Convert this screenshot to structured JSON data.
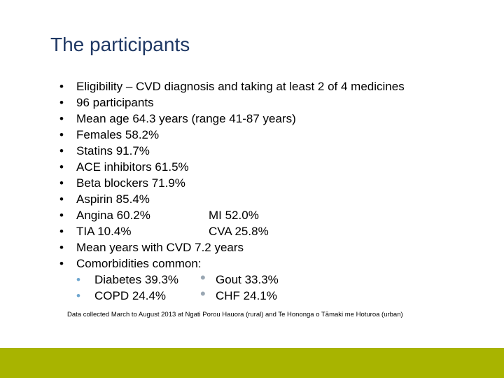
{
  "slide": {
    "title": "The participants",
    "bullet_glyph": "•",
    "items": [
      {
        "text": "Eligibility – CVD diagnosis and taking at least 2 of 4 medicines"
      },
      {
        "text": "96 participants"
      },
      {
        "text": "Mean age 64.3 years (range 41-87 years)"
      },
      {
        "text": "Females 58.2%"
      },
      {
        "text": "Statins 91.7%"
      },
      {
        "text": "ACE inhibitors 61.5%"
      },
      {
        "text": "Beta blockers 71.9%"
      },
      {
        "text": "Aspirin 85.4%"
      },
      {
        "text": "Angina 60.2%",
        "text2": "MI 52.0%"
      },
      {
        "text": "TIA 10.4%",
        "text2": "CVA 25.8%"
      },
      {
        "text": "Mean years with CVD 7.2 years"
      },
      {
        "text": "Comorbidities common:"
      }
    ],
    "sub_items": [
      {
        "left": "Diabetes 39.3%",
        "right": "Gout 33.3%"
      },
      {
        "left": "COPD 24.4%",
        "right": "CHF 24.1%"
      }
    ],
    "footnote": "Data collected March to August 2013 at Ngati Porou Hauora (rural)  and Te Hononga o Tāmaki me Hoturoa (urban)"
  },
  "colors": {
    "title": "#1f3864",
    "bottom_bar": "#a8b400",
    "sub_bullet_left": "#6ea6cf",
    "sub_bullet_right": "#9aa7b3"
  }
}
